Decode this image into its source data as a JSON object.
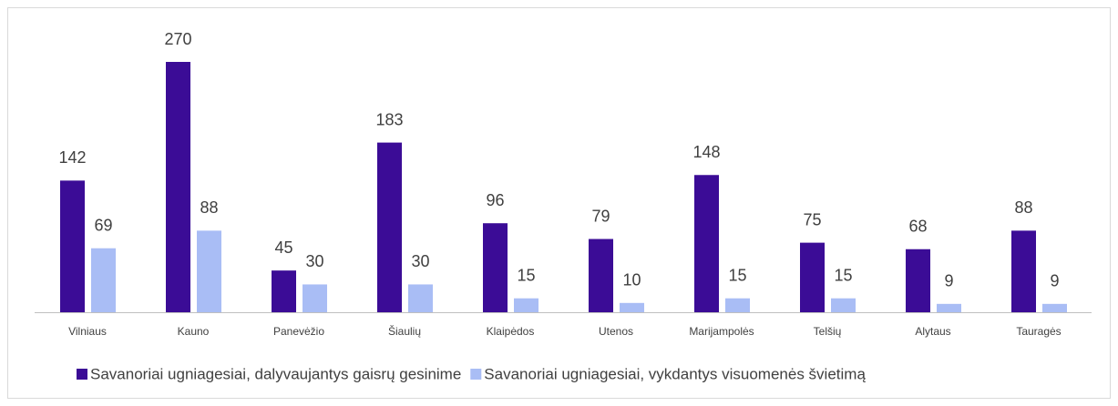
{
  "chart_data": {
    "type": "bar",
    "categories": [
      "Vilniaus",
      "Kauno",
      "Panevėžio",
      "Šiaulių",
      "Klaipėdos",
      "Utenos",
      "Marijampolės",
      "Telšių",
      "Alytaus",
      "Tauragės"
    ],
    "series": [
      {
        "name": "Savanoriai ugniagesiai, dalyvaujantys gaisrų gesinime",
        "color": "#3b0c96",
        "values": [
          142,
          270,
          45,
          183,
          96,
          79,
          148,
          75,
          68,
          88
        ]
      },
      {
        "name": "Savanoriai ugniagesiai, vykdantys visuomenės švietimą",
        "color": "#a9bdf5",
        "values": [
          69,
          88,
          30,
          30,
          15,
          10,
          15,
          15,
          9,
          9
        ]
      }
    ],
    "data_labels": true,
    "legend": "bottom"
  }
}
